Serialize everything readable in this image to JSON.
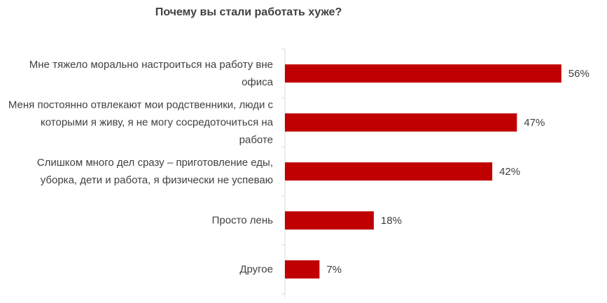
{
  "chart_data": {
    "type": "bar",
    "orientation": "horizontal",
    "title": "Почему вы стали работать хуже?",
    "categories": [
      "Мне тяжело морально настроиться на работу вне офиса",
      "Меня постоянно отвлекают мои родственники, люди с которыми я живу, я не могу сосредоточиться на работе",
      "Слишком много дел сразу – приготовление еды, уборка, дети и работа, я физически не успеваю",
      "Просто лень",
      "Другое"
    ],
    "values": [
      56,
      47,
      42,
      18,
      7
    ],
    "value_labels": [
      "56%",
      "47%",
      "42%",
      "18%",
      "7%"
    ],
    "color": "#c00000",
    "xlim": [
      0,
      60
    ]
  }
}
